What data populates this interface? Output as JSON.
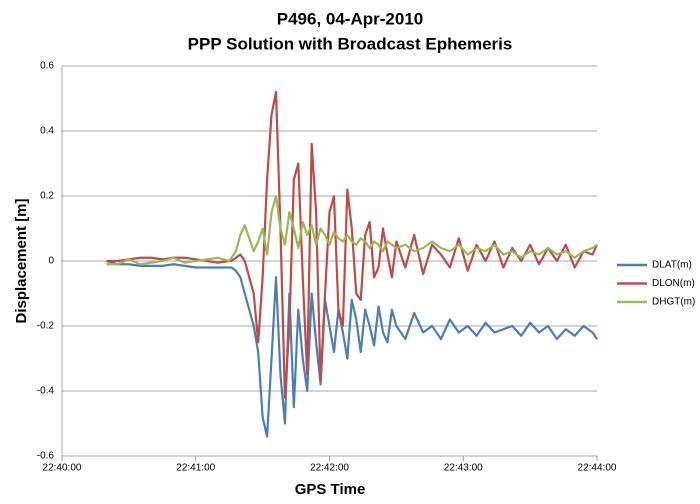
{
  "chart_data": {
    "type": "line",
    "title": "P496, 04-Apr-2010",
    "subtitle": "PPP Solution with Broadcast Ephemeris",
    "xlabel": "GPS Time",
    "ylabel": "Displacement [m]",
    "x": [
      "22:40:20",
      "22:40:25",
      "22:40:30",
      "22:40:35",
      "22:40:40",
      "22:40:45",
      "22:40:50",
      "22:40:55",
      "22:41:00",
      "22:41:05",
      "22:41:10",
      "22:41:15",
      "22:41:16",
      "22:41:18",
      "22:41:20",
      "22:41:22",
      "22:41:24",
      "22:41:26",
      "22:41:28",
      "22:41:30",
      "22:41:32",
      "22:41:34",
      "22:41:36",
      "22:41:38",
      "22:41:40",
      "22:41:42",
      "22:41:44",
      "22:41:46",
      "22:41:48",
      "22:41:50",
      "22:41:52",
      "22:41:54",
      "22:41:56",
      "22:41:58",
      "22:42:00",
      "22:42:02",
      "22:42:04",
      "22:42:06",
      "22:42:08",
      "22:42:10",
      "22:42:12",
      "22:42:14",
      "22:42:16",
      "22:42:18",
      "22:42:20",
      "22:42:22",
      "22:42:24",
      "22:42:26",
      "22:42:28",
      "22:42:30",
      "22:42:34",
      "22:42:38",
      "22:42:42",
      "22:42:46",
      "22:42:50",
      "22:42:54",
      "22:42:58",
      "22:43:02",
      "22:43:06",
      "22:43:10",
      "22:43:14",
      "22:43:18",
      "22:43:22",
      "22:43:26",
      "22:43:30",
      "22:43:34",
      "22:43:38",
      "22:43:42",
      "22:43:46",
      "22:43:50",
      "22:43:54",
      "22:43:58",
      "22:44:00"
    ],
    "series": [
      {
        "name": "DLAT(m)",
        "color": "#4a7ebb",
        "values": [
          0,
          -0.01,
          -0.01,
          -0.015,
          -0.015,
          -0.015,
          -0.01,
          -0.015,
          -0.02,
          -0.02,
          -0.02,
          -0.02,
          -0.02,
          -0.03,
          -0.05,
          -0.1,
          -0.15,
          -0.2,
          -0.28,
          -0.48,
          -0.54,
          -0.3,
          -0.05,
          -0.35,
          -0.5,
          -0.1,
          -0.45,
          -0.15,
          -0.3,
          -0.4,
          -0.1,
          -0.25,
          -0.38,
          -0.12,
          -0.2,
          -0.28,
          -0.15,
          -0.22,
          -0.3,
          -0.12,
          -0.18,
          -0.28,
          -0.15,
          -0.2,
          -0.26,
          -0.14,
          -0.22,
          -0.25,
          -0.15,
          -0.2,
          -0.24,
          -0.16,
          -0.22,
          -0.2,
          -0.24,
          -0.18,
          -0.22,
          -0.2,
          -0.23,
          -0.19,
          -0.22,
          -0.21,
          -0.2,
          -0.23,
          -0.19,
          -0.22,
          -0.2,
          -0.24,
          -0.21,
          -0.23,
          -0.2,
          -0.22,
          -0.24
        ]
      },
      {
        "name": "DLON(m)",
        "color": "#be4b48",
        "values": [
          0,
          0,
          0.005,
          0.01,
          0.01,
          0.005,
          0.01,
          0.01,
          0.005,
          0,
          -0.005,
          0,
          0,
          0.01,
          0.02,
          0,
          -0.05,
          -0.1,
          -0.25,
          -0.05,
          0.25,
          0.45,
          0.52,
          0.1,
          -0.42,
          -0.2,
          0.25,
          0.3,
          -0.05,
          -0.35,
          0.36,
          0.15,
          -0.37,
          -0.1,
          0.15,
          0.2,
          -0.15,
          -0.2,
          0.22,
          0.1,
          -0.1,
          -0.12,
          0.08,
          0.12,
          -0.05,
          -0.02,
          0.1,
          0.02,
          -0.05,
          0.06,
          -0.02,
          0.08,
          -0.04,
          0.05,
          0.02,
          -0.02,
          0.07,
          -0.03,
          0.05,
          0,
          0.06,
          -0.02,
          0.04,
          0,
          0.05,
          -0.01,
          0.04,
          0,
          0.05,
          -0.02,
          0.03,
          0.02,
          0.05
        ]
      },
      {
        "name": "DHGT(m)",
        "color": "#98b954",
        "values": [
          -0.01,
          -0.01,
          0.005,
          -0.01,
          -0.005,
          0,
          0.01,
          -0.005,
          0,
          0.005,
          0.01,
          0,
          0.01,
          0.03,
          0.08,
          0.11,
          0.07,
          0.03,
          0.06,
          0.1,
          0.02,
          0.15,
          0.2,
          0.1,
          0.05,
          0.15,
          0.1,
          0.04,
          0.12,
          0.08,
          0.11,
          0.05,
          0.1,
          0.08,
          0.05,
          0.09,
          0.07,
          0.06,
          0.08,
          0.06,
          0.05,
          0.07,
          0.06,
          0.04,
          0.06,
          0.05,
          0.03,
          0.06,
          0.05,
          0.04,
          0.05,
          0.03,
          0.04,
          0.06,
          0.04,
          0.03,
          0.05,
          0.02,
          0.04,
          0.03,
          0.05,
          0.02,
          0.03,
          0.01,
          0.03,
          0.02,
          0.04,
          0.02,
          0.03,
          0.01,
          0.03,
          0.04,
          0.05
        ]
      }
    ],
    "xlim": [
      "22:40:00",
      "22:44:00"
    ],
    "xticks": [
      "22:40:00",
      "22:41:00",
      "22:42:00",
      "22:43:00",
      "22:44:00"
    ],
    "ylim": [
      -0.6,
      0.6
    ],
    "yticks": [
      -0.6,
      -0.4,
      -0.2,
      0,
      0.2,
      0.4,
      0.6
    ],
    "grid": true,
    "legend": "right"
  }
}
